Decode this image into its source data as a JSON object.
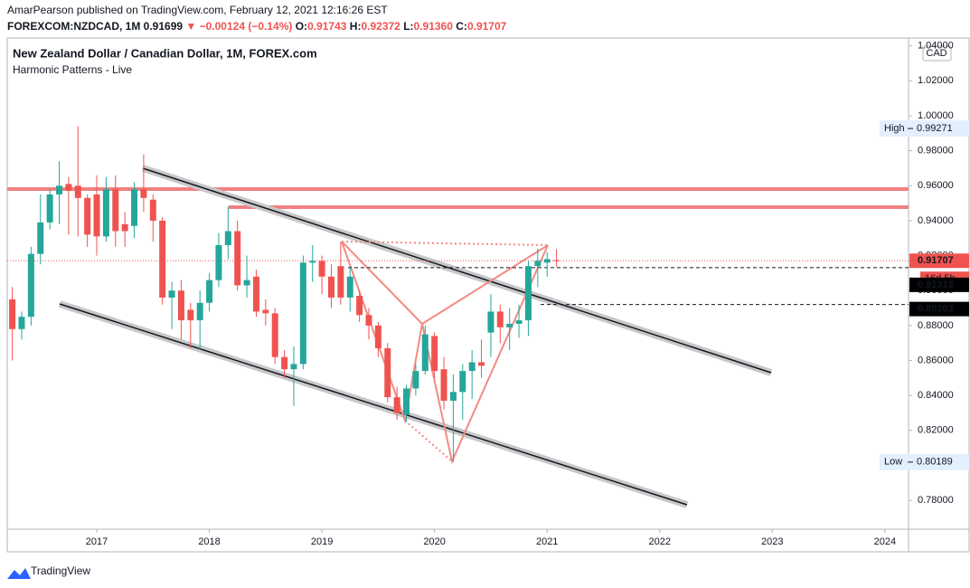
{
  "header": {
    "publisher_line": "AmarPearson published on TradingView.com, February 12, 2021 12:16:26 EST",
    "symbol": "FOREXCOM:NZDCAD, 1M",
    "last": "0.91699",
    "change": "▼ −0.00124 (−0.14%)",
    "ohlc": [
      {
        "label": "O:",
        "value": "0.91743"
      },
      {
        "label": "H:",
        "value": "0.92372"
      },
      {
        "label": "L:",
        "value": "0.91360"
      },
      {
        "label": "C:",
        "value": "0.91707"
      }
    ]
  },
  "chart_data": {
    "type": "candlestick",
    "title": "New Zealand Dollar / Canadian Dollar, 1M, FOREX.com",
    "subtitle": "Harmonic Patterns - Live",
    "currency": "CAD",
    "up_color": "#26a69a",
    "down_color": "#ef5350",
    "x": [
      2016.25,
      2016.3333,
      2016.4167,
      2016.5,
      2016.5833,
      2016.6667,
      2016.75,
      2016.8333,
      2016.9167,
      2017,
      2017.0833,
      2017.1667,
      2017.25,
      2017.3333,
      2017.4167,
      2017.5,
      2017.5833,
      2017.6667,
      2017.75,
      2017.8333,
      2017.9167,
      2018,
      2018.0833,
      2018.1667,
      2018.25,
      2018.3333,
      2018.4167,
      2018.5,
      2018.5833,
      2018.6667,
      2018.75,
      2018.8333,
      2018.9167,
      2019,
      2019.0833,
      2019.1667,
      2019.25,
      2019.3333,
      2019.4167,
      2019.5,
      2019.5833,
      2019.6667,
      2019.75,
      2019.8333,
      2019.9167,
      2020,
      2020.0833,
      2020.1667,
      2020.25,
      2020.3333,
      2020.4167,
      2020.5,
      2020.5833,
      2020.6667,
      2020.75,
      2020.8333,
      2020.9167,
      2021,
      2021.0833
    ],
    "open": [
      0.895,
      0.878,
      0.885,
      0.921,
      0.939,
      0.955,
      0.961,
      0.96,
      0.953,
      0.955,
      0.931,
      0.958,
      0.938,
      0.937,
      0.958,
      0.952,
      0.94,
      0.896,
      0.9,
      0.889,
      0.883,
      0.893,
      0.906,
      0.926,
      0.934,
      0.903,
      0.908,
      0.889,
      0.887,
      0.862,
      0.855,
      0.858,
      0.916,
      0.917,
      0.908,
      0.914,
      0.896,
      0.897,
      0.886,
      0.88,
      0.867,
      0.839,
      0.829,
      0.844,
      0.854,
      0.874,
      0.855,
      0.837,
      0.842,
      0.854,
      0.859,
      0.876,
      0.888,
      0.879,
      0.881,
      0.883,
      0.914,
      0.916,
      0.91743
    ],
    "high": [
      0.902,
      0.888,
      0.925,
      0.955,
      0.958,
      0.974,
      0.965,
      0.994,
      0.955,
      0.966,
      0.965,
      0.966,
      0.945,
      0.962,
      0.978,
      0.955,
      0.942,
      0.905,
      0.906,
      0.893,
      0.9,
      0.91,
      0.933,
      0.948,
      0.94,
      0.92,
      0.912,
      0.895,
      0.89,
      0.866,
      0.868,
      0.92,
      0.926,
      0.92,
      0.915,
      0.928,
      0.914,
      0.9,
      0.89,
      0.882,
      0.87,
      0.845,
      0.846,
      0.858,
      0.88,
      0.876,
      0.862,
      0.852,
      0.858,
      0.866,
      0.872,
      0.898,
      0.892,
      0.89,
      0.892,
      0.917,
      0.924,
      0.922,
      0.92372
    ],
    "low": [
      0.86,
      0.872,
      0.88,
      0.915,
      0.935,
      0.938,
      0.932,
      0.931,
      0.925,
      0.92,
      0.928,
      0.925,
      0.925,
      0.93,
      0.945,
      0.928,
      0.892,
      0.878,
      0.872,
      0.867,
      0.866,
      0.888,
      0.902,
      0.918,
      0.9,
      0.896,
      0.885,
      0.88,
      0.858,
      0.85,
      0.834,
      0.855,
      0.905,
      0.898,
      0.89,
      0.892,
      0.888,
      0.882,
      0.872,
      0.862,
      0.836,
      0.826,
      0.825,
      0.84,
      0.852,
      0.85,
      0.832,
      0.802,
      0.826,
      0.838,
      0.85,
      0.862,
      0.87,
      0.866,
      0.873,
      0.874,
      0.902,
      0.908,
      0.9136
    ],
    "close": [
      0.878,
      0.885,
      0.921,
      0.939,
      0.955,
      0.96,
      0.957,
      0.953,
      0.932,
      0.931,
      0.958,
      0.934,
      0.934,
      0.958,
      0.953,
      0.94,
      0.896,
      0.9,
      0.883,
      0.883,
      0.893,
      0.906,
      0.926,
      0.934,
      0.903,
      0.906,
      0.888,
      0.887,
      0.862,
      0.855,
      0.858,
      0.916,
      0.917,
      0.908,
      0.896,
      0.896,
      0.908,
      0.886,
      0.88,
      0.867,
      0.839,
      0.83,
      0.844,
      0.854,
      0.875,
      0.854,
      0.837,
      0.842,
      0.854,
      0.859,
      0.857,
      0.888,
      0.879,
      0.881,
      0.883,
      0.914,
      0.917,
      0.918,
      0.91707
    ],
    "xlim": [
      2016.205,
      2024.21
    ],
    "xticks": [
      2017,
      2018,
      2019,
      2020,
      2021,
      2022,
      2023,
      2024
    ],
    "ylim": [
      0.7635,
      1.0445
    ],
    "yticks": [
      {
        "value": 0.78,
        "label": "0.78000"
      },
      {
        "value": 0.8,
        "label": "0.80000"
      },
      {
        "value": 0.82,
        "label": "0.82000"
      },
      {
        "value": 0.84,
        "label": "0.84000"
      },
      {
        "value": 0.86,
        "label": "0.86000"
      },
      {
        "value": 0.88,
        "label": "0.88000"
      },
      {
        "value": 0.9,
        "label": "0.90000"
      },
      {
        "value": 0.92,
        "label": "0.92000"
      },
      {
        "value": 0.94,
        "label": "0.94000"
      },
      {
        "value": 0.96,
        "label": "0.96000"
      },
      {
        "value": 0.98,
        "label": "0.98000"
      },
      {
        "value": 1.0,
        "label": "1.00000"
      },
      {
        "value": 1.02,
        "label": "1.02000"
      },
      {
        "value": 1.04,
        "label": "1.04000"
      }
    ],
    "grid": false,
    "high_marker": {
      "label": "High",
      "value": 0.99271
    },
    "low_marker": {
      "label": "Low",
      "value": 0.80189
    },
    "current_price": 0.91707,
    "countdown": "16d 5h",
    "levels": [
      0.91313,
      0.89203
    ]
  },
  "footer": {
    "brand": "TradingView"
  }
}
